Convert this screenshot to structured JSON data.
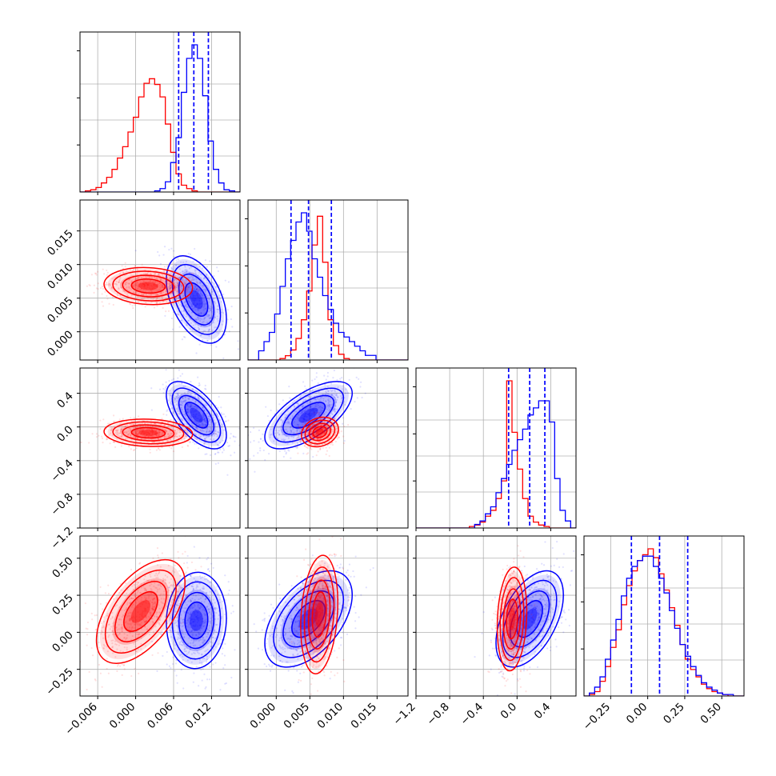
{
  "colors": {
    "series_a": "#ff0000",
    "series_b": "#0000ff",
    "grid": "#b0b0b0"
  },
  "series": [
    {
      "key": "a",
      "color": "#ff0000"
    },
    {
      "key": "b",
      "color": "#0000ff"
    }
  ],
  "chart_data": {
    "type": "corner",
    "grid": true,
    "n_params": 4,
    "ranges": [
      [
        -0.0088,
        0.0165
      ],
      [
        -0.0042,
        0.0196
      ],
      [
        -1.2,
        0.7
      ],
      [
        -0.43,
        0.65
      ]
    ],
    "ticks": [
      {
        "values": [
          -0.006,
          0.0,
          0.006,
          0.012
        ],
        "labels": [
          "−0.006",
          "0.000",
          "0.006",
          "0.012"
        ]
      },
      {
        "values": [
          0.0,
          0.005,
          0.01,
          0.015
        ],
        "labels": [
          "0.000",
          "0.005",
          "0.010",
          "0.015"
        ]
      },
      {
        "values": [
          -1.2,
          -0.8,
          -0.4,
          0.0,
          0.4
        ],
        "labels": [
          "−1.2",
          "−0.8",
          "−0.4",
          "0.0",
          "0.4"
        ]
      },
      {
        "values": [
          -0.25,
          0.0,
          0.25,
          0.5
        ],
        "labels": [
          "−0.25",
          "0.00",
          "0.25",
          "0.50"
        ]
      }
    ],
    "quantile_lines": [
      {
        "series": "b",
        "values": [
          0.0068,
          0.0092,
          0.0115
        ]
      },
      {
        "series": "b",
        "values": [
          0.0022,
          0.0048,
          0.0082
        ]
      },
      {
        "series": "b",
        "values": [
          -0.1,
          0.15,
          0.33
        ]
      },
      {
        "series": "b",
        "values": [
          -0.11,
          0.08,
          0.27
        ]
      }
    ],
    "histograms": [
      {
        "bins": [
          -0.0088,
          0.0165
        ],
        "a": [
          0,
          1,
          2,
          4,
          8,
          13,
          20,
          30,
          40,
          53,
          66,
          84,
          96,
          100,
          95,
          84,
          60,
          35,
          16,
          6,
          3,
          1,
          0,
          0,
          0,
          0,
          0,
          0,
          0,
          0
        ],
        "b": [
          0,
          0,
          0,
          0,
          0,
          0,
          0,
          0,
          0,
          0,
          0,
          0,
          0,
          0,
          1,
          3,
          9,
          26,
          48,
          88,
          118,
          130,
          118,
          85,
          45,
          20,
          8,
          2,
          1,
          0
        ]
      },
      {
        "bins": [
          -0.0042,
          0.0196
        ],
        "a": [
          0,
          0,
          0,
          0,
          0,
          0,
          1,
          3,
          7,
          15,
          28,
          48,
          80,
          100,
          68,
          28,
          10,
          4,
          1,
          0,
          0,
          0,
          0,
          0,
          0,
          0,
          0,
          0,
          0,
          0
        ],
        "b": [
          0,
          0,
          2,
          4,
          6,
          10,
          16,
          22,
          26,
          30,
          32,
          28,
          22,
          18,
          14,
          11,
          8,
          6,
          5,
          4,
          3,
          2,
          1,
          1,
          0,
          0,
          0,
          0,
          0,
          0
        ],
        "scale_b": 3.2
      },
      {
        "bins": [
          -1.2,
          0.7
        ],
        "a": [
          0,
          0,
          0,
          0,
          0,
          0,
          0,
          0,
          0,
          0,
          1,
          2,
          4,
          8,
          12,
          20,
          32,
          100,
          65,
          40,
          20,
          8,
          4,
          2,
          1,
          0,
          0,
          0,
          0,
          0
        ],
        "b": [
          0,
          0,
          0,
          0,
          0,
          0,
          0,
          0,
          0,
          0,
          0,
          1,
          2,
          4,
          6,
          10,
          14,
          18,
          22,
          25,
          28,
          32,
          34,
          36,
          36,
          30,
          14,
          5,
          2,
          0
        ],
        "scale_b": 2.4
      },
      {
        "bins": [
          -0.43,
          0.65
        ],
        "a": [
          0,
          1,
          3,
          10,
          20,
          33,
          45,
          62,
          75,
          85,
          92,
          96,
          100,
          94,
          83,
          72,
          60,
          48,
          35,
          25,
          18,
          13,
          8,
          5,
          3,
          2,
          1,
          0,
          0,
          0
        ],
        "b": [
          0,
          2,
          6,
          13,
          25,
          38,
          52,
          68,
          80,
          88,
          92,
          95,
          95,
          88,
          80,
          70,
          58,
          46,
          35,
          27,
          20,
          14,
          9,
          6,
          4,
          2,
          1,
          1,
          0,
          0
        ]
      }
    ],
    "pair_panels": [
      {
        "row": 1,
        "col": 0,
        "a": {
          "mean": [
            0.002,
            0.0068
          ],
          "sd": [
            0.0028,
            0.0011
          ],
          "rho": -0.1
        },
        "b": {
          "mean": [
            0.0096,
            0.0048
          ],
          "sd": [
            0.0019,
            0.0026
          ],
          "rho": -0.45
        }
      },
      {
        "row": 2,
        "col": 0,
        "a": {
          "mean": [
            0.002,
            -0.07
          ],
          "sd": [
            0.0028,
            0.065
          ],
          "rho": -0.1
        },
        "b": {
          "mean": [
            0.0096,
            0.14
          ],
          "sd": [
            0.0019,
            0.16
          ],
          "rho": -0.6
        }
      },
      {
        "row": 2,
        "col": 1,
        "a": {
          "mean": [
            0.0065,
            -0.06
          ],
          "sd": [
            0.0011,
            0.07
          ],
          "rho": 0.2
        },
        "b": {
          "mean": [
            0.0048,
            0.14
          ],
          "sd": [
            0.0026,
            0.16
          ],
          "rho": 0.65
        }
      },
      {
        "row": 3,
        "col": 0,
        "a": {
          "mean": [
            0.0008,
            0.14
          ],
          "sd": [
            0.0028,
            0.14
          ],
          "rho": 0.55
        },
        "b": {
          "mean": [
            0.0096,
            0.08
          ],
          "sd": [
            0.0019,
            0.13
          ],
          "rho": 0.05
        }
      },
      {
        "row": 3,
        "col": 1,
        "a": {
          "mean": [
            0.0064,
            0.12
          ],
          "sd": [
            0.0011,
            0.16
          ],
          "rho": 0.2
        },
        "b": {
          "mean": [
            0.0048,
            0.09
          ],
          "sd": [
            0.0026,
            0.13
          ],
          "rho": 0.5
        }
      },
      {
        "row": 3,
        "col": 2,
        "a": {
          "mean": [
            -0.06,
            0.09
          ],
          "sd": [
            0.07,
            0.14
          ],
          "rho": 0.15
        },
        "b": {
          "mean": [
            0.15,
            0.09
          ],
          "sd": [
            0.16,
            0.13
          ],
          "rho": 0.5
        }
      }
    ]
  }
}
